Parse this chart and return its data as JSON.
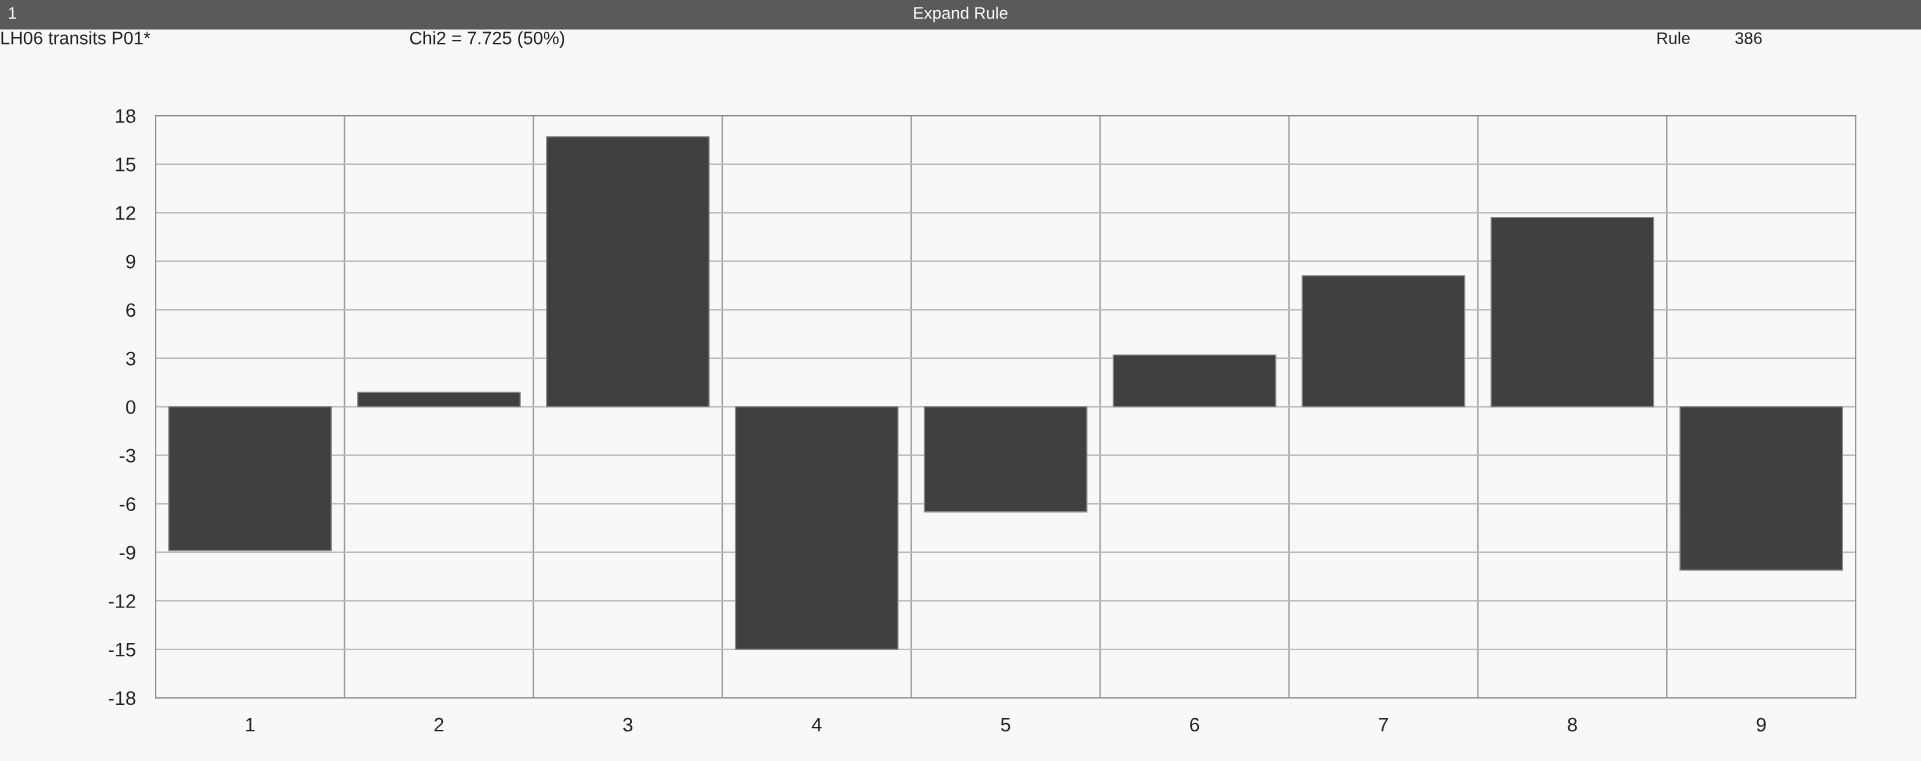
{
  "chart_data": {
    "type": "bar",
    "title": "LH06 transits P01*",
    "subtitle": "Chi2 = 7.725 (50%)",
    "annotations": [
      "Expand Rule",
      "1",
      "Rule",
      "386"
    ],
    "categories": [
      "1",
      "2",
      "3",
      "4",
      "5",
      "6",
      "7",
      "8",
      "9"
    ],
    "values": [
      -8.9,
      0.9,
      16.7,
      -15.0,
      -6.5,
      3.2,
      8.1,
      11.7,
      -10.1
    ],
    "color": "#404040",
    "ylim": [
      -18,
      18
    ],
    "yticks": [
      -18,
      -15,
      -12,
      -9,
      -6,
      -3,
      0,
      3,
      6,
      9,
      12,
      15,
      18
    ],
    "grid": true
  }
}
